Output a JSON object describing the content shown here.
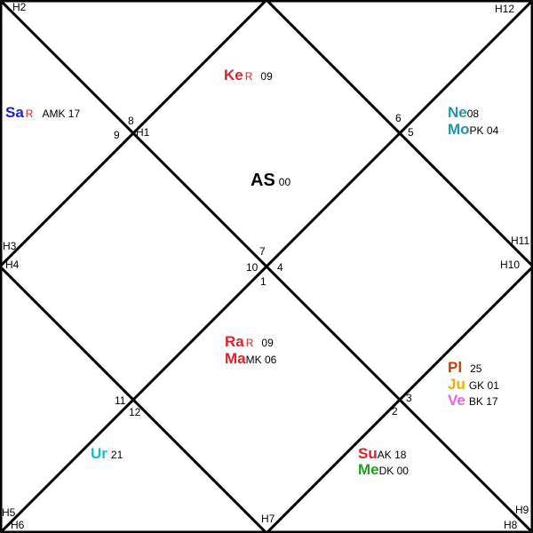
{
  "houses": {
    "H1": "H1",
    "H2": "H2",
    "H3": "H3",
    "H4": "H4",
    "H5": "H5",
    "H6": "H6",
    "H7": "H7",
    "H8": "H8",
    "H9": "H9",
    "H10": "H10",
    "H11": "H11",
    "H12": "H12"
  },
  "signs": [
    "1",
    "2",
    "3",
    "4",
    "5",
    "6",
    "7",
    "8",
    "9",
    "10",
    "11",
    "12"
  ],
  "ascendant": {
    "abbr": "AS",
    "degree": "00"
  },
  "planets": {
    "ketu": {
      "abbr": "Ke",
      "retro": "R",
      "extra": "09",
      "color": "#e0202a"
    },
    "saturn": {
      "abbr": "Sa",
      "retro": "R",
      "extra": "AMK 17",
      "color": "#2020d0",
      "retro_color": "#e0202a"
    },
    "neptune": {
      "abbr": "Ne",
      "extra": "08",
      "color": "#1a9aa8"
    },
    "moon": {
      "abbr": "Mo",
      "extra": "PK 04",
      "color": "#1a9aa8"
    },
    "rahu": {
      "abbr": "Ra",
      "retro": "R",
      "extra": "09",
      "color": "#e0202a"
    },
    "mars": {
      "abbr": "Ma",
      "extra": "MK 06",
      "color": "#e0202a"
    },
    "pluto": {
      "abbr": "Pl",
      "extra": "25",
      "color": "#c0400c"
    },
    "jupiter": {
      "abbr": "Ju",
      "extra": "GK 01",
      "color": "#f0b000"
    },
    "venus": {
      "abbr": "Ve",
      "extra": "BK 17",
      "color": "#f060e0"
    },
    "uranus": {
      "abbr": "Ur",
      "extra": "21",
      "color": "#10c0d0"
    },
    "sun": {
      "abbr": "Su",
      "extra": "AK 18",
      "color": "#e0202a"
    },
    "mercury": {
      "abbr": "Me",
      "extra": "DK 00",
      "color": "#20a020"
    }
  }
}
